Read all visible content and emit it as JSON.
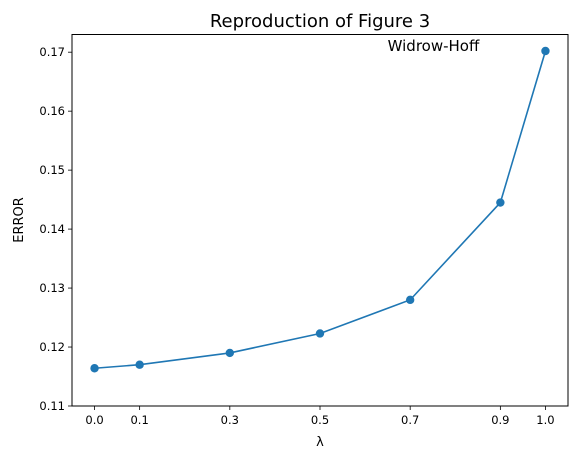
{
  "chart_data": {
    "type": "line",
    "title": "Reproduction of Figure 3",
    "xlabel": "λ",
    "ylabel": "ERROR",
    "x": [
      0.0,
      0.1,
      0.3,
      0.5,
      0.7,
      0.9,
      1.0
    ],
    "x_tick_labels": [
      "0.0",
      "0.1",
      "0.3",
      "0.5",
      "0.7",
      "0.9",
      "1.0"
    ],
    "y_ticks": [
      0.11,
      0.12,
      0.13,
      0.14,
      0.15,
      0.16,
      0.17
    ],
    "y_tick_labels": [
      "0.11",
      "0.12",
      "0.13",
      "0.14",
      "0.15",
      "0.16",
      "0.17"
    ],
    "xlim": [
      -0.05,
      1.05
    ],
    "ylim": [
      0.11,
      0.173
    ],
    "series": [
      {
        "values": [
          0.1164,
          0.117,
          0.119,
          0.1223,
          0.128,
          0.1445,
          0.1702
        ],
        "color": "#1f77b4",
        "marker": "circle"
      }
    ],
    "annotations": [
      {
        "text": "Widrow-Hoff",
        "x": 0.65,
        "y": 0.1702
      }
    ],
    "grid": false,
    "legend": "none"
  }
}
